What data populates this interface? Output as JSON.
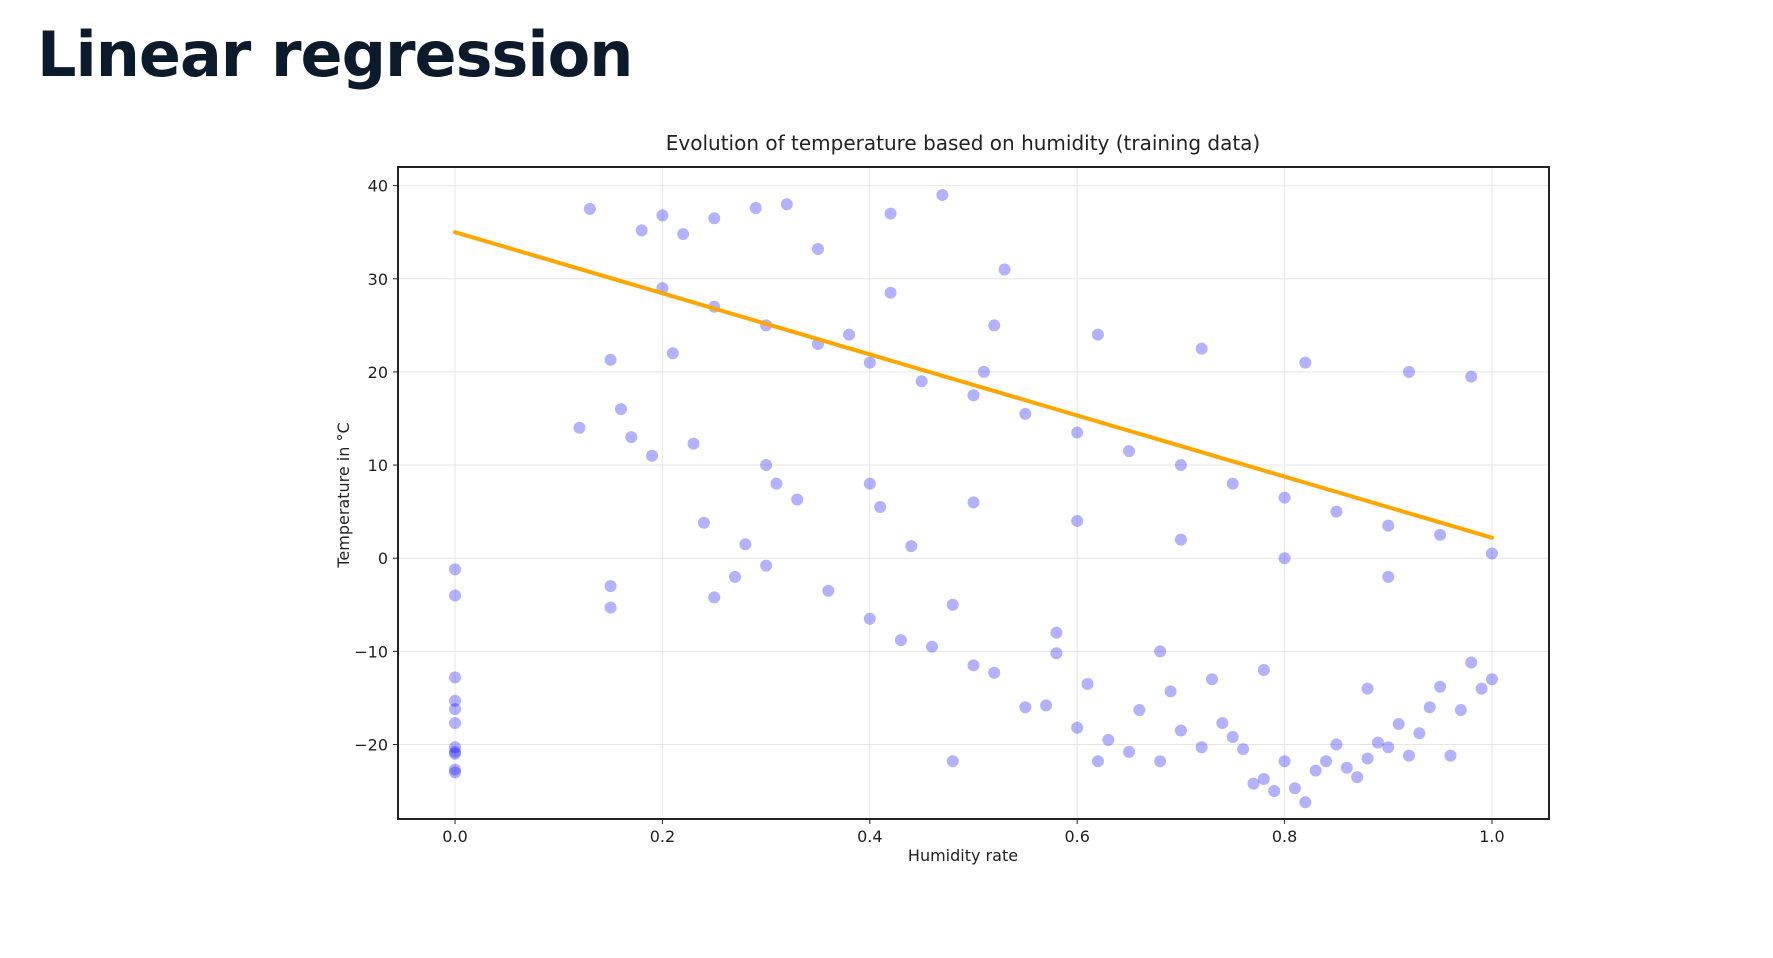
{
  "slide": {
    "title": "Linear regression"
  },
  "colors": {
    "points": "#0000ff",
    "regression_line": "#ffa500",
    "frame": "#222222",
    "grid": "#e6e6e6"
  },
  "chart_data": {
    "type": "scatter",
    "title": "Evolution of temperature based on humidity (training data)",
    "xlabel": "Humidity rate",
    "ylabel": "Temperature in °C",
    "xlim": [
      -0.055,
      1.055
    ],
    "ylim": [
      -28,
      42
    ],
    "xticks": [
      0.0,
      0.2,
      0.4,
      0.6,
      0.8,
      1.0
    ],
    "xtick_labels": [
      "0.0",
      "0.2",
      "0.4",
      "0.6",
      "0.8",
      "1.0"
    ],
    "yticks": [
      -20,
      -10,
      0,
      10,
      20,
      30,
      40
    ],
    "ytick_labels": [
      "−20",
      "−10",
      "0",
      "10",
      "20",
      "30",
      "40"
    ],
    "grid": true,
    "legend": "none",
    "regression_line": {
      "x": [
        0.0,
        1.0
      ],
      "y": [
        35.0,
        2.2
      ]
    },
    "points": {
      "x": [
        0.0,
        0.0,
        0.0,
        0.0,
        0.0,
        0.0,
        0.0,
        0.0,
        0.0,
        0.0,
        0.0,
        0.12,
        0.13,
        0.15,
        0.15,
        0.15,
        0.16,
        0.17,
        0.18,
        0.19,
        0.2,
        0.21,
        0.22,
        0.23,
        0.24,
        0.25,
        0.25,
        0.27,
        0.28,
        0.29,
        0.3,
        0.31,
        0.32,
        0.33,
        0.35,
        0.36,
        0.38,
        0.4,
        0.41,
        0.42,
        0.43,
        0.44,
        0.46,
        0.47,
        0.48,
        0.5,
        0.51,
        0.52,
        0.53,
        0.55,
        0.57,
        0.58,
        0.6,
        0.61,
        0.62,
        0.63,
        0.65,
        0.66,
        0.68,
        0.69,
        0.7,
        0.72,
        0.73,
        0.74,
        0.75,
        0.76,
        0.77,
        0.78,
        0.79,
        0.8,
        0.81,
        0.82,
        0.83,
        0.84,
        0.85,
        0.86,
        0.87,
        0.88,
        0.89,
        0.9,
        0.91,
        0.92,
        0.93,
        0.94,
        0.95,
        0.96,
        0.97,
        0.98,
        0.99,
        1.0,
        0.2,
        0.25,
        0.3,
        0.35,
        0.4,
        0.45,
        0.5,
        0.55,
        0.6,
        0.65,
        0.7,
        0.75,
        0.8,
        0.85,
        0.9,
        0.95,
        1.0,
        0.42,
        0.52,
        0.62,
        0.72,
        0.82,
        0.92,
        0.98,
        0.3,
        0.4,
        0.5,
        0.6,
        0.7,
        0.8,
        0.9,
        0.48,
        0.58,
        0.68,
        0.78,
        0.88
      ],
      "y": [
        -1.2,
        -4.0,
        -12.8,
        -15.3,
        -16.2,
        -17.7,
        -20.3,
        -21.0,
        -22.7,
        -23.0,
        -20.8,
        14.0,
        37.5,
        21.3,
        -3.0,
        -5.3,
        16.0,
        13.0,
        35.2,
        11.0,
        36.8,
        22.0,
        34.8,
        12.3,
        3.8,
        -4.2,
        36.5,
        -2.0,
        1.5,
        37.6,
        -0.8,
        8.0,
        38.0,
        6.3,
        33.2,
        -3.5,
        24.0,
        -6.5,
        5.5,
        37.0,
        -8.8,
        1.3,
        -9.5,
        39.0,
        -21.8,
        -11.5,
        20.0,
        -12.3,
        31.0,
        -16.0,
        -15.8,
        -10.2,
        -18.2,
        -13.5,
        -21.8,
        -19.5,
        -20.8,
        -16.3,
        -21.8,
        -14.3,
        -18.5,
        -20.3,
        -13.0,
        -17.7,
        -19.2,
        -20.5,
        -24.2,
        -23.7,
        -25.0,
        -21.8,
        -24.7,
        -26.2,
        -22.8,
        -21.8,
        -20.0,
        -22.5,
        -23.5,
        -21.5,
        -19.8,
        -20.3,
        -17.8,
        -21.2,
        -18.8,
        -16.0,
        -13.8,
        -21.2,
        -16.3,
        -11.2,
        -14.0,
        -13.0,
        29.0,
        27.0,
        25.0,
        23.0,
        21.0,
        19.0,
        17.5,
        15.5,
        13.5,
        11.5,
        10.0,
        8.0,
        6.5,
        5.0,
        3.5,
        2.5,
        0.5,
        28.5,
        25.0,
        24.0,
        22.5,
        21.0,
        20.0,
        19.5,
        10.0,
        8.0,
        6.0,
        4.0,
        2.0,
        0.0,
        -2.0,
        -5.0,
        -8.0,
        -10.0,
        -12.0,
        -14.0
      ]
    }
  }
}
